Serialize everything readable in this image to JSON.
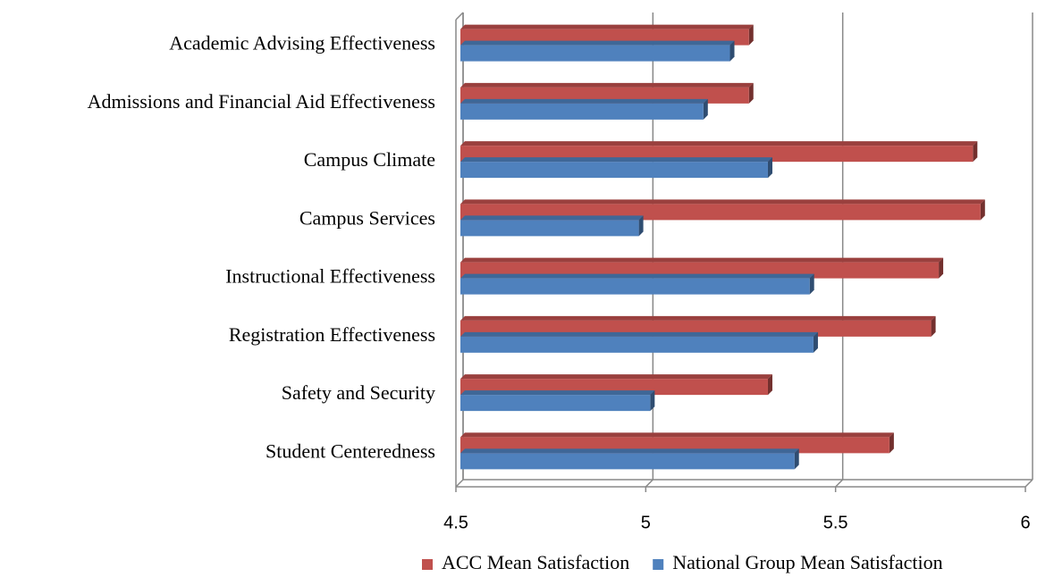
{
  "chart_data": {
    "type": "bar3d_horizontal",
    "categories": [
      "Academic Advising Effectiveness",
      "Admissions and Financial Aid Effectiveness",
      "Campus Climate",
      "Campus Services",
      "Instructional Effectiveness",
      "Registration Effectiveness",
      "Safety and Security",
      "Student Centeredness"
    ],
    "series": [
      {
        "name": "ACC Mean Satisfaction",
        "color": "#c0504d",
        "values": [
          5.26,
          5.26,
          5.85,
          5.87,
          5.76,
          5.74,
          5.31,
          5.63
        ]
      },
      {
        "name": "National Group Mean Satisfaction",
        "color": "#4f81bd",
        "values": [
          5.21,
          5.14,
          5.31,
          4.97,
          5.42,
          5.43,
          5.0,
          5.38
        ]
      }
    ],
    "xlim": [
      4.5,
      6
    ],
    "xticks": [
      4.5,
      5,
      5.5,
      6
    ],
    "grid": true,
    "legend": "bottom"
  }
}
